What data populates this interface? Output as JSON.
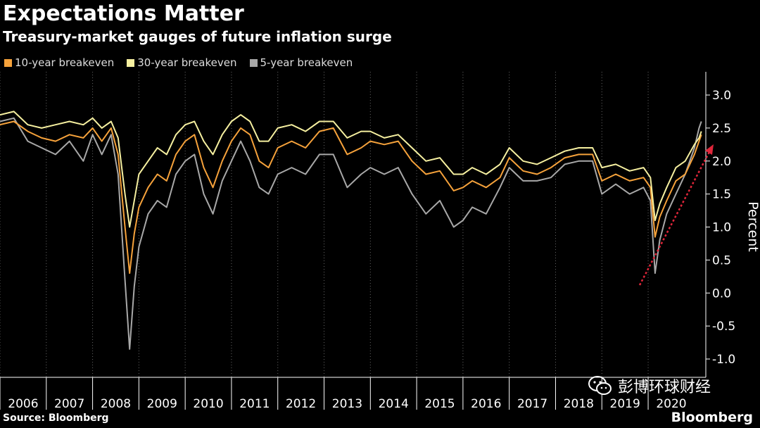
{
  "header": {
    "title": "Expectations Matter",
    "subtitle": "Treasury-market gauges of future inflation surge"
  },
  "legend": [
    {
      "label": "10-year breakeven",
      "color": "#f6a23b"
    },
    {
      "label": "30-year breakeven",
      "color": "#f6f0a0"
    },
    {
      "label": "5-year breakeven",
      "color": "#a8a8a8"
    }
  ],
  "footer": {
    "source": "Source: Bloomberg",
    "brand": "Bloomberg"
  },
  "watermark": {
    "text": "彭博环球财经",
    "icon": "wechat-icon"
  },
  "chart_data": {
    "type": "line",
    "ylabel": "Percent",
    "ylim": [
      -1.0,
      3.0
    ],
    "yticks": [
      "3.0",
      "2.5",
      "2.0",
      "1.5",
      "1.0",
      "0.5",
      "0.0",
      "-0.5",
      "-1.0"
    ],
    "x_tick_labels": [
      "2006",
      "2007",
      "2008",
      "2009",
      "2010",
      "2011",
      "2012",
      "2013",
      "2014",
      "2015",
      "2016",
      "2017",
      "2018",
      "2019",
      "2020"
    ],
    "xlim": [
      2006.0,
      2021.2
    ],
    "grid": "vertical dotted",
    "legend_position": "top-left",
    "series": [
      {
        "name": "10-year breakeven",
        "color": "#f6a23b",
        "x": [
          2006.0,
          2006.3,
          2006.6,
          2006.9,
          2007.2,
          2007.5,
          2007.8,
          2008.0,
          2008.2,
          2008.4,
          2008.55,
          2008.7,
          2008.8,
          2008.9,
          2009.0,
          2009.2,
          2009.4,
          2009.6,
          2009.8,
          2010.0,
          2010.2,
          2010.4,
          2010.6,
          2010.8,
          2011.0,
          2011.2,
          2011.4,
          2011.6,
          2011.8,
          2012.0,
          2012.3,
          2012.6,
          2012.9,
          2013.2,
          2013.5,
          2013.8,
          2014.0,
          2014.3,
          2014.6,
          2014.9,
          2015.2,
          2015.5,
          2015.8,
          2016.0,
          2016.2,
          2016.5,
          2016.8,
          2017.0,
          2017.3,
          2017.6,
          2017.9,
          2018.2,
          2018.5,
          2018.8,
          2019.0,
          2019.3,
          2019.6,
          2019.9,
          2020.05,
          2020.15,
          2020.25,
          2020.4,
          2020.6,
          2020.8,
          2021.0,
          2021.1,
          2021.15
        ],
        "y": [
          2.55,
          2.6,
          2.45,
          2.35,
          2.3,
          2.4,
          2.35,
          2.5,
          2.3,
          2.5,
          2.1,
          1.0,
          0.3,
          0.9,
          1.3,
          1.6,
          1.8,
          1.7,
          2.1,
          2.3,
          2.4,
          1.9,
          1.6,
          2.0,
          2.3,
          2.5,
          2.4,
          2.0,
          1.9,
          2.2,
          2.3,
          2.2,
          2.45,
          2.5,
          2.1,
          2.2,
          2.3,
          2.25,
          2.3,
          2.0,
          1.8,
          1.85,
          1.55,
          1.6,
          1.7,
          1.6,
          1.75,
          2.05,
          1.85,
          1.8,
          1.9,
          2.05,
          2.1,
          2.1,
          1.7,
          1.8,
          1.7,
          1.75,
          1.6,
          0.85,
          1.15,
          1.4,
          1.7,
          1.8,
          2.1,
          2.3,
          2.4
        ]
      },
      {
        "name": "30-year breakeven",
        "color": "#f6f0a0",
        "x": [
          2006.0,
          2006.3,
          2006.6,
          2006.9,
          2007.2,
          2007.5,
          2007.8,
          2008.0,
          2008.2,
          2008.4,
          2008.55,
          2008.7,
          2008.8,
          2008.9,
          2009.0,
          2009.2,
          2009.4,
          2009.6,
          2009.8,
          2010.0,
          2010.2,
          2010.4,
          2010.6,
          2010.8,
          2011.0,
          2011.2,
          2011.4,
          2011.6,
          2011.8,
          2012.0,
          2012.3,
          2012.6,
          2012.9,
          2013.2,
          2013.5,
          2013.8,
          2014.0,
          2014.3,
          2014.6,
          2014.9,
          2015.2,
          2015.5,
          2015.8,
          2016.0,
          2016.2,
          2016.5,
          2016.8,
          2017.0,
          2017.3,
          2017.6,
          2017.9,
          2018.2,
          2018.5,
          2018.8,
          2019.0,
          2019.3,
          2019.6,
          2019.9,
          2020.05,
          2020.15,
          2020.25,
          2020.4,
          2020.6,
          2020.8,
          2021.0,
          2021.1,
          2021.15
        ],
        "y": [
          2.7,
          2.75,
          2.55,
          2.5,
          2.55,
          2.6,
          2.55,
          2.65,
          2.5,
          2.6,
          2.35,
          1.5,
          1.0,
          1.4,
          1.8,
          2.0,
          2.2,
          2.1,
          2.4,
          2.55,
          2.6,
          2.3,
          2.1,
          2.4,
          2.6,
          2.7,
          2.6,
          2.3,
          2.3,
          2.5,
          2.55,
          2.45,
          2.6,
          2.6,
          2.35,
          2.45,
          2.45,
          2.35,
          2.4,
          2.2,
          2.0,
          2.05,
          1.8,
          1.8,
          1.9,
          1.8,
          1.95,
          2.2,
          2.0,
          1.95,
          2.05,
          2.15,
          2.2,
          2.2,
          1.9,
          1.95,
          1.85,
          1.9,
          1.75,
          1.1,
          1.35,
          1.6,
          1.9,
          2.0,
          2.25,
          2.35,
          2.45
        ]
      },
      {
        "name": "5-year breakeven",
        "color": "#a8a8a8",
        "x": [
          2006.0,
          2006.3,
          2006.6,
          2006.9,
          2007.2,
          2007.5,
          2007.8,
          2008.0,
          2008.2,
          2008.4,
          2008.55,
          2008.7,
          2008.8,
          2008.9,
          2009.0,
          2009.2,
          2009.4,
          2009.6,
          2009.8,
          2010.0,
          2010.2,
          2010.4,
          2010.6,
          2010.8,
          2011.0,
          2011.2,
          2011.4,
          2011.6,
          2011.8,
          2012.0,
          2012.3,
          2012.6,
          2012.9,
          2013.2,
          2013.5,
          2013.8,
          2014.0,
          2014.3,
          2014.6,
          2014.9,
          2015.2,
          2015.5,
          2015.8,
          2016.0,
          2016.2,
          2016.5,
          2016.8,
          2017.0,
          2017.3,
          2017.6,
          2017.9,
          2018.2,
          2018.5,
          2018.8,
          2019.0,
          2019.3,
          2019.6,
          2019.9,
          2020.05,
          2020.15,
          2020.25,
          2020.4,
          2020.6,
          2020.8,
          2021.0,
          2021.1,
          2021.15
        ],
        "y": [
          2.6,
          2.65,
          2.3,
          2.2,
          2.1,
          2.3,
          2.0,
          2.4,
          2.1,
          2.4,
          1.8,
          0.2,
          -0.85,
          0.1,
          0.7,
          1.2,
          1.4,
          1.3,
          1.8,
          2.0,
          2.1,
          1.5,
          1.2,
          1.7,
          2.0,
          2.3,
          2.0,
          1.6,
          1.5,
          1.8,
          1.9,
          1.8,
          2.1,
          2.1,
          1.6,
          1.8,
          1.9,
          1.8,
          1.9,
          1.5,
          1.2,
          1.4,
          1.0,
          1.1,
          1.3,
          1.2,
          1.6,
          1.9,
          1.7,
          1.7,
          1.75,
          1.95,
          2.0,
          2.0,
          1.5,
          1.65,
          1.5,
          1.6,
          1.4,
          0.3,
          0.8,
          1.2,
          1.5,
          1.8,
          2.2,
          2.5,
          2.6
        ]
      }
    ]
  }
}
